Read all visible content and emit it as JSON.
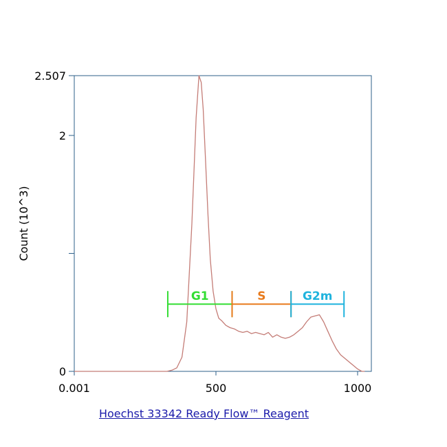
{
  "chart_data": {
    "type": "line",
    "title": "",
    "xlabel": "",
    "ylabel": "Count (10^3)",
    "xlim": [
      0,
      1000
    ],
    "ylim": [
      0,
      2.507
    ],
    "x_ticks": [
      {
        "value": 0,
        "label": "0.001"
      },
      {
        "value": 500,
        "label": "500"
      },
      {
        "value": 1000,
        "label": "1000"
      }
    ],
    "y_ticks": [
      {
        "value": 0,
        "label": "0"
      },
      {
        "value": 1,
        "label": ""
      },
      {
        "value": 2,
        "label": "2"
      },
      {
        "value": 2.507,
        "label": "2.507"
      }
    ],
    "grid": false,
    "frame_color": "#2c5f8a",
    "series": [
      {
        "color": "#c47c76",
        "x": [
          0,
          100,
          200,
          300,
          327,
          345,
          362,
          380,
          397,
          415,
          430,
          440,
          448,
          455,
          463,
          472,
          480,
          490,
          500,
          510,
          520,
          535,
          550,
          565,
          580,
          595,
          610,
          625,
          640,
          655,
          670,
          685,
          700,
          715,
          730,
          745,
          760,
          775,
          790,
          805,
          820,
          835,
          850,
          865,
          880,
          895,
          910,
          925,
          940,
          955,
          970,
          985,
          1000,
          1015,
          1025
        ],
        "y": [
          0,
          0,
          0,
          0,
          0.0,
          0.01,
          0.03,
          0.12,
          0.42,
          1.25,
          2.15,
          2.507,
          2.45,
          2.22,
          1.8,
          1.32,
          0.95,
          0.68,
          0.53,
          0.45,
          0.43,
          0.39,
          0.37,
          0.36,
          0.34,
          0.33,
          0.34,
          0.32,
          0.33,
          0.32,
          0.31,
          0.33,
          0.29,
          0.31,
          0.29,
          0.28,
          0.29,
          0.31,
          0.34,
          0.37,
          0.42,
          0.46,
          0.47,
          0.48,
          0.42,
          0.34,
          0.26,
          0.19,
          0.14,
          0.11,
          0.08,
          0.05,
          0.02,
          0.0,
          0.0
        ]
      }
    ],
    "gates": [
      {
        "name": "G1",
        "start": 330,
        "end": 557,
        "color": "#33dd33"
      },
      {
        "name": "S",
        "start": 557,
        "end": 765,
        "color": "#e87a1c"
      },
      {
        "name": "G2m",
        "start": 765,
        "end": 952,
        "color": "#1fb3dd"
      }
    ],
    "gate_level": 0.57
  },
  "footer": {
    "link_text": "Hoechst 33342 Ready Flow™ Reagent"
  }
}
